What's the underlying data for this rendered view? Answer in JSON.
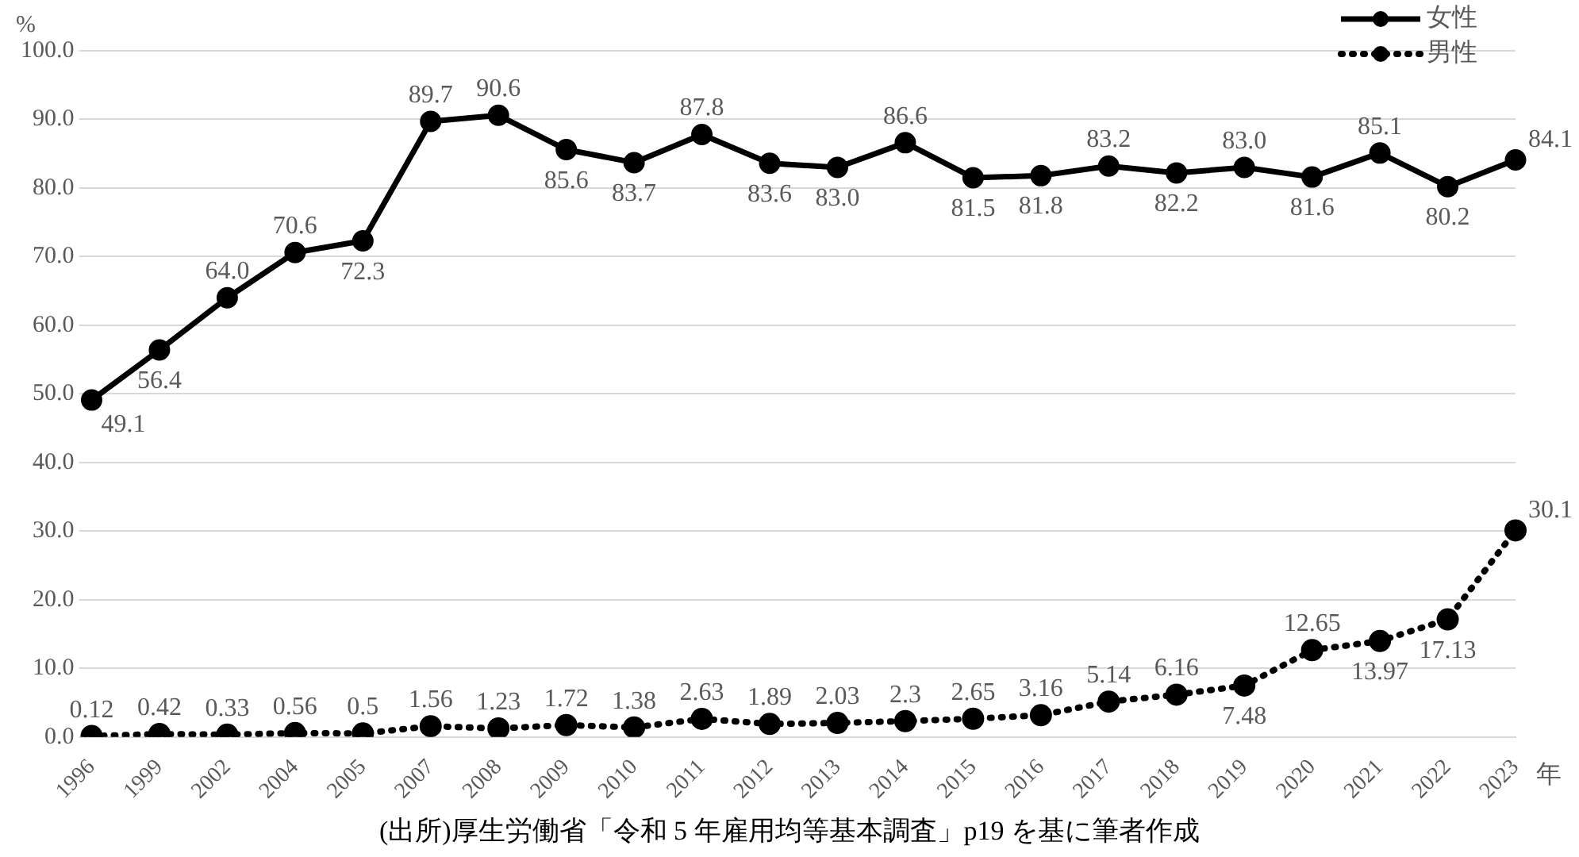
{
  "chart_data": {
    "type": "line",
    "ylabel": "%",
    "xlabel": "年",
    "categories": [
      "1996",
      "1999",
      "2002",
      "2004",
      "2005",
      "2007",
      "2008",
      "2009",
      "2010",
      "2011",
      "2012",
      "2013",
      "2014",
      "2015",
      "2016",
      "2017",
      "2018",
      "2019",
      "2020",
      "2021",
      "2022",
      "2023"
    ],
    "series": [
      {
        "name": "女性",
        "color": "#000000",
        "line_style": "solid",
        "values": [
          49.1,
          56.4,
          64.0,
          70.6,
          72.3,
          89.7,
          90.6,
          85.6,
          83.7,
          87.8,
          83.6,
          83.0,
          86.6,
          81.5,
          81.8,
          83.2,
          82.2,
          83.0,
          81.6,
          85.1,
          80.2,
          84.1
        ],
        "value_labels": [
          "49.1",
          "56.4",
          "64.0",
          "70.6",
          "72.3",
          "89.7",
          "90.6",
          "85.6",
          "83.7",
          "87.8",
          "83.6",
          "83.0",
          "86.6",
          "81.5",
          "81.8",
          "83.2",
          "82.2",
          "83.0",
          "81.6",
          "85.1",
          "80.2",
          "84.1"
        ]
      },
      {
        "name": "男性",
        "color": "#000000",
        "line_style": "dotted",
        "values": [
          0.12,
          0.42,
          0.33,
          0.56,
          0.5,
          1.56,
          1.23,
          1.72,
          1.38,
          2.63,
          1.89,
          2.03,
          2.3,
          2.65,
          3.16,
          5.14,
          6.16,
          7.48,
          12.65,
          13.97,
          17.13,
          30.1
        ],
        "value_labels": [
          "0.12",
          "0.42",
          "0.33",
          "0.56",
          "0.5",
          "1.56",
          "1.23",
          "1.72",
          "1.38",
          "2.63",
          "1.89",
          "2.03",
          "2.3",
          "2.65",
          "3.16",
          "5.14",
          "6.16",
          "7.48",
          "12.65",
          "13.97",
          "17.13",
          "30.1"
        ]
      }
    ],
    "ylim": [
      0,
      100
    ],
    "yticks": [
      {
        "value": 0,
        "label": "0.0"
      },
      {
        "value": 10,
        "label": "10.0"
      },
      {
        "value": 20,
        "label": "20.0"
      },
      {
        "value": 30,
        "label": "30.0"
      },
      {
        "value": 40,
        "label": "40.0"
      },
      {
        "value": 50,
        "label": "50.0"
      },
      {
        "value": 60,
        "label": "60.0"
      },
      {
        "value": 70,
        "label": "70.0"
      },
      {
        "value": 80,
        "label": "80.0"
      },
      {
        "value": 90,
        "label": "90.0"
      },
      {
        "value": 100,
        "label": "100.0"
      }
    ],
    "grid": "y",
    "legend": "top right",
    "marker": "circle",
    "annotations": [
      "(出所)厚生労働省「令和 5 年雇用均等基本調査」p19 を基に筆者作成"
    ]
  }
}
